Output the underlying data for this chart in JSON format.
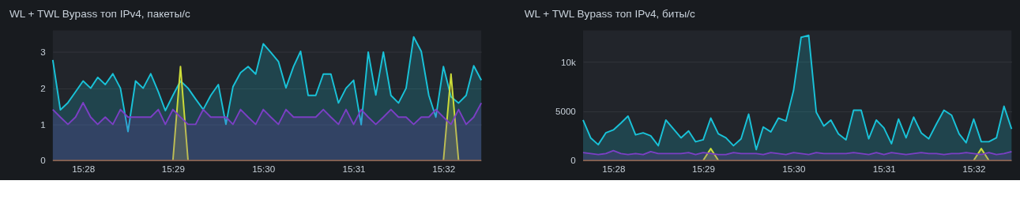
{
  "chart_data": [
    {
      "type": "area",
      "title": "WL + TWL Bypass топ IPv4, пакеты/с",
      "x": [
        15.4611,
        15.4625,
        15.4639,
        15.4653,
        15.4667,
        15.4681,
        15.4694,
        15.4708,
        15.4722,
        15.4736,
        15.475,
        15.4764,
        15.4778,
        15.4792,
        15.4806,
        15.4819,
        15.4833,
        15.4847,
        15.4861,
        15.4875,
        15.4889,
        15.4903,
        15.4917,
        15.4931,
        15.4944,
        15.4958,
        15.4972,
        15.4986,
        15.5,
        15.5014,
        15.5028,
        15.5042,
        15.5056,
        15.5069,
        15.5083,
        15.5097,
        15.5111,
        15.5125,
        15.5139,
        15.5153,
        15.5167,
        15.5181,
        15.5194,
        15.5208,
        15.5222,
        15.5236,
        15.525,
        15.5264,
        15.5278,
        15.5292,
        15.5306,
        15.5319,
        15.5333,
        15.5347,
        15.5361,
        15.5375,
        15.5389,
        15.5403
      ],
      "series": [
        {
          "color": "#19c2d8",
          "values": [
            2.78,
            1.4,
            1.6,
            1.9,
            2.2,
            2.0,
            2.3,
            2.1,
            2.4,
            2.0,
            0.8,
            2.2,
            2.0,
            2.4,
            1.9,
            1.38,
            1.8,
            2.2,
            2.0,
            1.7,
            1.41,
            1.8,
            2.1,
            1.0,
            2.04,
            2.43,
            2.6,
            2.39,
            3.23,
            2.99,
            2.74,
            2.01,
            2.6,
            3.02,
            1.8,
            1.8,
            2.39,
            2.39,
            1.59,
            2.0,
            2.22,
            0.99,
            3.0,
            1.81,
            3.0,
            1.8,
            1.59,
            2.0,
            3.42,
            3.02,
            1.8,
            1.2,
            2.6,
            1.76,
            1.59,
            1.8,
            2.62,
            2.22
          ]
        },
        {
          "color": "#cddc39",
          "values": [
            null,
            null,
            null,
            null,
            null,
            null,
            null,
            null,
            null,
            null,
            null,
            null,
            null,
            null,
            null,
            null,
            0,
            2.6,
            0,
            null,
            null,
            null,
            null,
            null,
            null,
            null,
            null,
            null,
            null,
            null,
            null,
            null,
            null,
            null,
            null,
            null,
            null,
            null,
            null,
            null,
            null,
            null,
            null,
            null,
            null,
            null,
            null,
            null,
            null,
            null,
            null,
            null,
            0,
            2.39,
            0,
            null,
            null,
            null
          ]
        },
        {
          "color": "#7b3fc4",
          "values": [
            1.41,
            1.2,
            1.0,
            1.2,
            1.6,
            1.2,
            1.0,
            1.2,
            1.0,
            1.41,
            1.2,
            1.2,
            1.2,
            1.2,
            1.41,
            1.0,
            1.41,
            1.2,
            1.0,
            1.0,
            1.41,
            1.2,
            1.2,
            1.2,
            1.0,
            1.41,
            1.2,
            1.0,
            1.41,
            1.2,
            1.0,
            1.41,
            1.2,
            1.2,
            1.2,
            1.2,
            1.41,
            1.2,
            1.0,
            1.41,
            1.0,
            1.41,
            1.2,
            1.0,
            1.2,
            1.41,
            1.2,
            1.2,
            1.0,
            1.2,
            1.2,
            1.41,
            1.2,
            1.0,
            1.41,
            1.0,
            1.2,
            1.59
          ]
        },
        {
          "color": "#8a6352",
          "type": "line",
          "values": [
            0,
            0,
            0,
            0,
            0,
            0,
            0,
            0,
            0,
            0,
            0,
            0,
            0,
            0,
            0,
            0,
            0,
            0,
            0,
            0,
            0,
            0,
            0,
            0,
            0,
            0,
            0,
            0,
            0,
            0,
            0,
            0,
            0,
            0,
            0,
            0,
            0,
            0,
            0,
            0,
            0,
            0,
            0,
            0,
            0,
            0,
            0,
            0,
            0,
            0,
            0,
            0,
            0,
            0,
            0,
            0,
            0,
            0
          ]
        }
      ],
      "xlim": [
        15.4611,
        15.5403
      ],
      "xticks": [
        {
          "value": 15.4667,
          "label": "15:28"
        },
        {
          "value": 15.4833,
          "label": "15:29"
        },
        {
          "value": 15.5,
          "label": "15:30"
        },
        {
          "value": 15.5167,
          "label": "15:31"
        },
        {
          "value": 15.5333,
          "label": "15:32"
        }
      ],
      "ylim": [
        0,
        3.6
      ],
      "yticks": [
        0,
        1,
        2,
        3
      ],
      "grid": "y"
    },
    {
      "type": "area",
      "title": "WL + TWL Bypass топ IPv4, биты/с",
      "x": [
        15.4611,
        15.4625,
        15.4639,
        15.4653,
        15.4667,
        15.4681,
        15.4694,
        15.4708,
        15.4722,
        15.4736,
        15.475,
        15.4764,
        15.4778,
        15.4792,
        15.4806,
        15.4819,
        15.4833,
        15.4847,
        15.4861,
        15.4875,
        15.4889,
        15.4903,
        15.4917,
        15.4931,
        15.4944,
        15.4958,
        15.4972,
        15.4986,
        15.5,
        15.5014,
        15.5028,
        15.5042,
        15.5056,
        15.5069,
        15.5083,
        15.5097,
        15.5111,
        15.5125,
        15.5139,
        15.5153,
        15.5167,
        15.5181,
        15.5194,
        15.5208,
        15.5222,
        15.5236,
        15.525,
        15.5264,
        15.5278,
        15.5292,
        15.5306,
        15.5319,
        15.5333,
        15.5347,
        15.5361,
        15.5375,
        15.5389,
        15.5403
      ],
      "series": [
        {
          "color": "#19c2d8",
          "values": [
            4100,
            2300,
            1600,
            2800,
            3100,
            3800,
            4500,
            2600,
            2800,
            2500,
            1500,
            4100,
            3200,
            2300,
            3000,
            1900,
            2100,
            4300,
            2700,
            2300,
            1500,
            2200,
            4700,
            1100,
            3400,
            2900,
            4300,
            4000,
            7100,
            12500,
            12700,
            4900,
            3500,
            4100,
            2700,
            2100,
            5100,
            5100,
            2200,
            4100,
            3300,
            1700,
            4200,
            2300,
            4400,
            2800,
            2200,
            3700,
            5100,
            4600,
            2700,
            1800,
            4200,
            1900,
            1900,
            2300,
            5500,
            3200
          ]
        },
        {
          "color": "#cddc39",
          "values": [
            null,
            null,
            null,
            null,
            null,
            null,
            null,
            null,
            null,
            null,
            null,
            null,
            null,
            null,
            null,
            null,
            0,
            1200,
            0,
            null,
            null,
            null,
            null,
            null,
            null,
            null,
            null,
            null,
            null,
            null,
            null,
            null,
            null,
            null,
            null,
            null,
            null,
            null,
            null,
            null,
            null,
            null,
            null,
            null,
            null,
            null,
            null,
            null,
            null,
            null,
            null,
            null,
            0,
            1200,
            0,
            null,
            null,
            null
          ]
        },
        {
          "color": "#7b3fc4",
          "values": [
            800,
            700,
            600,
            700,
            1000,
            700,
            600,
            700,
            600,
            900,
            700,
            700,
            700,
            700,
            800,
            600,
            800,
            700,
            600,
            600,
            800,
            700,
            700,
            700,
            600,
            800,
            700,
            600,
            800,
            700,
            600,
            800,
            700,
            700,
            700,
            700,
            800,
            700,
            600,
            800,
            600,
            800,
            700,
            600,
            700,
            800,
            700,
            700,
            600,
            700,
            700,
            800,
            700,
            600,
            800,
            600,
            700,
            900
          ]
        },
        {
          "color": "#8a6352",
          "type": "line",
          "values": [
            0,
            0,
            0,
            0,
            0,
            0,
            0,
            0,
            0,
            0,
            0,
            0,
            0,
            0,
            0,
            0,
            0,
            0,
            0,
            0,
            0,
            0,
            0,
            0,
            0,
            0,
            0,
            0,
            0,
            0,
            0,
            0,
            0,
            0,
            0,
            0,
            0,
            0,
            0,
            0,
            0,
            0,
            0,
            0,
            0,
            0,
            0,
            0,
            0,
            0,
            0,
            0,
            0,
            0,
            0,
            0,
            0,
            0
          ]
        }
      ],
      "xlim": [
        15.4611,
        15.5403
      ],
      "xticks": [
        {
          "value": 15.4667,
          "label": "15:28"
        },
        {
          "value": 15.4833,
          "label": "15:29"
        },
        {
          "value": 15.5,
          "label": "15:30"
        },
        {
          "value": 15.5167,
          "label": "15:31"
        },
        {
          "value": 15.5333,
          "label": "15:32"
        }
      ],
      "ylim": [
        0,
        13200
      ],
      "yticks": [
        0,
        5000,
        {
          "value": 10000,
          "label": "10k"
        }
      ],
      "grid": "y"
    }
  ]
}
